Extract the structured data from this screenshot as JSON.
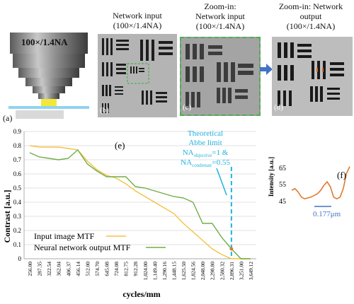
{
  "objective": {
    "label": "100×/1.4NA",
    "panel": "(a)"
  },
  "panels": [
    {
      "id": "b",
      "panel": "(b)",
      "caption_line1": "Network input",
      "caption_line2": "(100×/1.4NA)"
    },
    {
      "id": "c",
      "panel": "(c)",
      "caption_line1": "Zoom-in:",
      "caption_line2": "Network input",
      "caption_line3": "(100×/1.4NA)"
    },
    {
      "id": "d",
      "panel": "(d)",
      "caption_line1": "Zoom-in: Network",
      "caption_line2": "output",
      "caption_line3": "(100×/1.4NA)"
    }
  ],
  "colors": {
    "input": "#f5c242",
    "network": "#70ad47",
    "abbe": "#1fb3e0",
    "profile": "#e07a2e",
    "arrow": "#4472c4",
    "zoom_box": "#4caf50"
  },
  "chart_data": {
    "type": "line",
    "panel": "(e)",
    "xlabel": "cycles/mm",
    "ylabel": "Contrast [a.u.]",
    "ylim": [
      0,
      0.9
    ],
    "yticks": [
      "0",
      "0.1",
      "0.2",
      "0.3",
      "0.4",
      "0.5",
      "0.6",
      "0.7",
      "0.8",
      "0.9"
    ],
    "categories": [
      "256.00",
      "287.35",
      "322.54",
      "362.04",
      "406.37",
      "456.14",
      "512.00",
      "574.70",
      "645.08",
      "724.08",
      "812.75",
      "912.28",
      "1,024.00",
      "1,149.40",
      "1,290.16",
      "1,448.15",
      "1,625.50",
      "1,824.56",
      "2,048.00",
      "2,298.80",
      "2,580.32",
      "2,896.31",
      "3,251.00",
      "3,649.12"
    ],
    "series": [
      {
        "name": "Input image MTF",
        "values": [
          0.8,
          0.79,
          0.79,
          0.79,
          0.78,
          0.77,
          0.69,
          0.63,
          0.59,
          0.57,
          0.53,
          0.48,
          0.44,
          0.4,
          0.36,
          0.32,
          0.25,
          0.19,
          0.13,
          0.07,
          0.03,
          0.0,
          0.0,
          0.0
        ]
      },
      {
        "name": "Neural network output MTF",
        "values": [
          0.75,
          0.72,
          0.71,
          0.7,
          0.71,
          0.77,
          0.67,
          0.62,
          0.58,
          0.58,
          0.58,
          0.51,
          0.5,
          0.48,
          0.46,
          0.44,
          0.43,
          0.4,
          0.25,
          0.25,
          0.15,
          0.07,
          0.0,
          0.0
        ]
      }
    ],
    "annotation": {
      "line1": "Theoretical",
      "line2": "Abbe limit",
      "na_obj_prefix": "NA",
      "na_obj_sub": "objective",
      "na_obj_suffix": "=1 &",
      "na_cond_prefix": "NA",
      "na_cond_sub": "condenser",
      "na_cond_suffix": "=0.55",
      "x_category": "2,896.31"
    }
  },
  "profile": {
    "panel": "(f)",
    "ylabel": "Intensity [a.u.]",
    "yticks": [
      "65",
      "55",
      "45"
    ],
    "scale_label": "0.177μm",
    "values": [
      52,
      53,
      51,
      48,
      47,
      47.5,
      48,
      49,
      50,
      52,
      55,
      57,
      54,
      48,
      47,
      48,
      53,
      62,
      66
    ]
  }
}
